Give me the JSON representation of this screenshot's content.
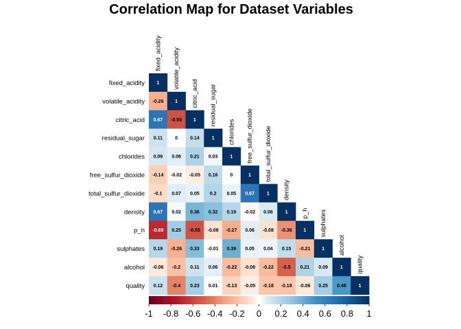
{
  "chart_data": {
    "type": "heatmap",
    "title": "Correlation Map for Dataset Variables",
    "variables": [
      "fixed_acidity",
      "volatile_acidity",
      "citric_acid",
      "residual_sugar",
      "chlorides",
      "free_sulfur_dioxide",
      "total_sulfur_dioxide",
      "density",
      "p_h",
      "sulphates",
      "alcohol",
      "quality"
    ],
    "lower_triangle": [
      [
        "1"
      ],
      [
        "-0.26",
        "1"
      ],
      [
        "0.67",
        "-0.55",
        "1"
      ],
      [
        "0.11",
        "0",
        "0.14",
        "1"
      ],
      [
        "0.09",
        "0.06",
        "0.21",
        "0.03",
        "1"
      ],
      [
        "-0.14",
        "-0.02",
        "-0.05",
        "0.16",
        "0",
        "1"
      ],
      [
        "-0.1",
        "0.07",
        "0.05",
        "0.2",
        "0.05",
        "0.67",
        "1"
      ],
      [
        "0.67",
        "0.02",
        "0.36",
        "0.32",
        "0.19",
        "-0.02",
        "0.08",
        "1"
      ],
      [
        "-0.69",
        "0.25",
        "-0.55",
        "-0.08",
        "-0.27",
        "0.06",
        "-0.08",
        "-0.36",
        "1"
      ],
      [
        "0.19",
        "-0.26",
        "0.33",
        "-0.01",
        "0.39",
        "0.05",
        "0.04",
        "0.15",
        "-0.21",
        "1"
      ],
      [
        "-0.06",
        "-0.2",
        "0.11",
        "0.06",
        "-0.22",
        "-0.08",
        "-0.22",
        "-0.5",
        "0.21",
        "0.09",
        "1"
      ],
      [
        "0.12",
        "-0.4",
        "0.23",
        "0.01",
        "-0.13",
        "-0.05",
        "-0.18",
        "-0.18",
        "-0.06",
        "0.25",
        "0.48",
        "1"
      ]
    ],
    "color_scale": {
      "range": [
        -1,
        1
      ],
      "ticks": [
        "-1",
        "-0.8",
        "-0.6",
        "-0.4",
        "-0.2",
        "0",
        "0.2",
        "0.4",
        "0.6",
        "0.8",
        "1"
      ],
      "negative_color": "#67001f",
      "mid_color": "#ffffff",
      "positive_color": "#053061"
    },
    "layout": "lower-triangle",
    "legend_placement": "bottom"
  }
}
